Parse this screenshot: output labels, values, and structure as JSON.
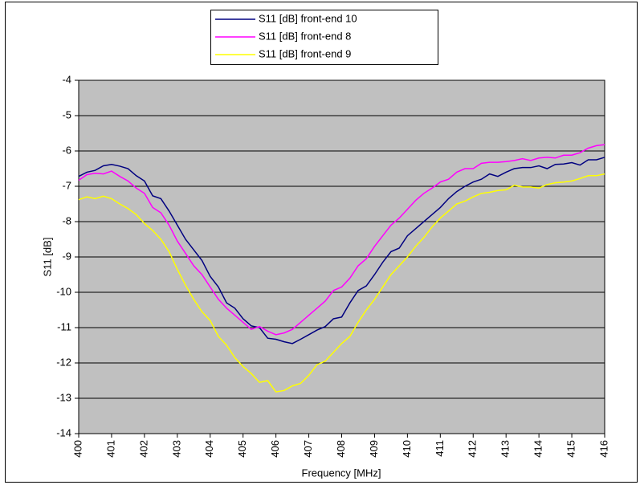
{
  "chart_data": {
    "type": "line",
    "x_label": "Frequency [MHz]",
    "y_label": "S11 [dB]",
    "x": [
      400,
      400.25,
      400.5,
      400.75,
      401,
      401.25,
      401.5,
      401.75,
      402,
      402.25,
      402.5,
      402.75,
      403,
      403.25,
      403.5,
      403.75,
      404,
      404.25,
      404.5,
      404.75,
      405,
      405.25,
      405.5,
      405.75,
      406,
      406.25,
      406.5,
      406.75,
      407,
      407.25,
      407.5,
      407.75,
      408,
      408.25,
      408.5,
      408.75,
      409,
      409.25,
      409.5,
      409.75,
      410,
      410.25,
      410.5,
      410.75,
      411,
      411.25,
      411.5,
      411.75,
      412,
      412.25,
      412.5,
      412.75,
      413,
      413.25,
      413.5,
      413.75,
      414,
      414.25,
      414.5,
      414.75,
      415,
      415.25,
      415.5,
      415.75,
      416
    ],
    "series": [
      {
        "name": "S11 [dB] front-end 10",
        "color": "#000080",
        "values": [
          -6.72,
          -6.6,
          -6.55,
          -6.42,
          -6.38,
          -6.43,
          -6.5,
          -6.7,
          -6.85,
          -7.27,
          -7.35,
          -7.7,
          -8.1,
          -8.5,
          -8.8,
          -9.1,
          -9.55,
          -9.85,
          -10.3,
          -10.45,
          -10.75,
          -10.95,
          -11.0,
          -11.3,
          -11.33,
          -11.4,
          -11.45,
          -11.33,
          -11.2,
          -11.07,
          -10.97,
          -10.75,
          -10.7,
          -10.3,
          -9.95,
          -9.82,
          -9.5,
          -9.15,
          -8.85,
          -8.75,
          -8.4,
          -8.2,
          -8.0,
          -7.8,
          -7.6,
          -7.35,
          -7.15,
          -7.0,
          -6.88,
          -6.8,
          -6.65,
          -6.72,
          -6.6,
          -6.5,
          -6.47,
          -6.47,
          -6.42,
          -6.5,
          -6.38,
          -6.37,
          -6.33,
          -6.4,
          -6.25,
          -6.25,
          -6.18
        ]
      },
      {
        "name": "S11 [dB] front-end 8",
        "color": "#ff00ff",
        "values": [
          -6.83,
          -6.67,
          -6.63,
          -6.65,
          -6.57,
          -6.72,
          -6.85,
          -7.05,
          -7.2,
          -7.6,
          -7.75,
          -8.1,
          -8.55,
          -8.9,
          -9.25,
          -9.5,
          -9.85,
          -10.2,
          -10.45,
          -10.65,
          -10.85,
          -11.05,
          -10.97,
          -11.1,
          -11.2,
          -11.15,
          -11.05,
          -10.85,
          -10.65,
          -10.45,
          -10.25,
          -9.95,
          -9.85,
          -9.6,
          -9.25,
          -9.05,
          -8.7,
          -8.4,
          -8.1,
          -7.9,
          -7.65,
          -7.4,
          -7.2,
          -7.05,
          -6.88,
          -6.8,
          -6.6,
          -6.5,
          -6.5,
          -6.35,
          -6.32,
          -6.32,
          -6.3,
          -6.27,
          -6.22,
          -6.27,
          -6.2,
          -6.18,
          -6.2,
          -6.12,
          -6.12,
          -6.05,
          -5.92,
          -5.85,
          -5.82
        ]
      },
      {
        "name": "S11 [dB] front-end 9",
        "color": "#ffff00",
        "values": [
          -7.38,
          -7.3,
          -7.35,
          -7.28,
          -7.35,
          -7.5,
          -7.63,
          -7.8,
          -8.05,
          -8.25,
          -8.5,
          -8.85,
          -9.35,
          -9.8,
          -10.2,
          -10.55,
          -10.8,
          -11.25,
          -11.5,
          -11.85,
          -12.1,
          -12.3,
          -12.55,
          -12.5,
          -12.82,
          -12.78,
          -12.65,
          -12.58,
          -12.35,
          -12.05,
          -11.95,
          -11.7,
          -11.45,
          -11.25,
          -10.85,
          -10.5,
          -10.2,
          -9.85,
          -9.5,
          -9.25,
          -9.0,
          -8.7,
          -8.45,
          -8.15,
          -7.9,
          -7.7,
          -7.5,
          -7.42,
          -7.3,
          -7.2,
          -7.17,
          -7.12,
          -7.1,
          -6.97,
          -7.02,
          -7.02,
          -7.05,
          -6.95,
          -6.9,
          -6.88,
          -6.85,
          -6.78,
          -6.7,
          -6.7,
          -6.65
        ]
      }
    ],
    "xlim": [
      400,
      416
    ],
    "ylim": [
      -14,
      -4
    ],
    "xticks": [
      400,
      401,
      402,
      403,
      404,
      405,
      406,
      407,
      408,
      409,
      410,
      411,
      412,
      413,
      414,
      415,
      416
    ],
    "yticks": [
      -14,
      -13,
      -12,
      -11,
      -10,
      -9,
      -8,
      -7,
      -6,
      -5,
      -4
    ],
    "grid": true,
    "plot_background": "#c0c0c0",
    "legend": "top"
  }
}
